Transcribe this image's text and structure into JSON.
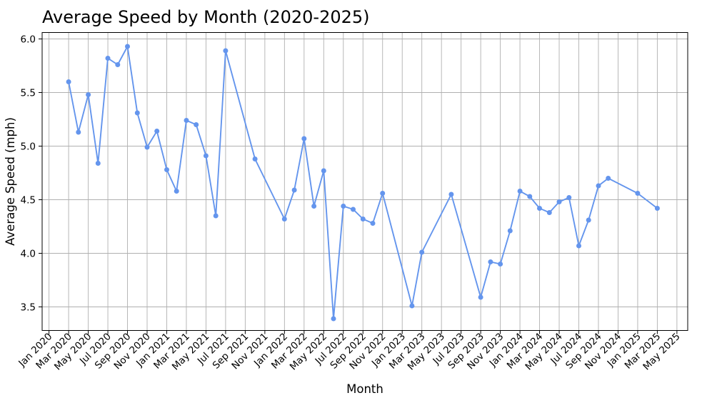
{
  "chart_data": {
    "type": "line",
    "title": "Average Speed by Month (2020-2025)",
    "xlabel": "Month",
    "ylabel": "Average Speed (mph)",
    "line_color": "#6495ED",
    "marker": "o",
    "grid": true,
    "grid_color": "#b0b0b0",
    "spine_color": "#000000",
    "background_color": "#ffffff",
    "legend": "none",
    "ylim": [
      3.28,
      6.06
    ],
    "xlim_months_from_jan2020": [
      -0.7,
      65.1
    ],
    "yticks": [
      6.0,
      5.5,
      5.0,
      4.5,
      4.0,
      3.5
    ],
    "xtick_labels": [
      "Jan 2020",
      "Mar 2020",
      "May 2020",
      "Jul 2020",
      "Sep 2020",
      "Nov 2020",
      "Jan 2021",
      "Mar 2021",
      "May 2021",
      "Jul 2021",
      "Sep 2021",
      "Nov 2021",
      "Jan 2022",
      "Mar 2022",
      "May 2022",
      "Jul 2022",
      "Sep 2022",
      "Nov 2022",
      "Jan 2023",
      "Mar 2023",
      "May 2023",
      "Jul 2023",
      "Sep 2023",
      "Nov 2023",
      "Jan 2024",
      "Mar 2024",
      "May 2024",
      "Jul 2024",
      "Sep 2024",
      "Nov 2024",
      "Jan 2025",
      "Mar 2025",
      "May 2025"
    ],
    "points": [
      {
        "month": "Mar 2020",
        "index": 2,
        "value": 5.6
      },
      {
        "month": "Apr 2020",
        "index": 3,
        "value": 5.13
      },
      {
        "month": "May 2020",
        "index": 4,
        "value": 5.48
      },
      {
        "month": "Jun 2020",
        "index": 5,
        "value": 4.84
      },
      {
        "month": "Jul 2020",
        "index": 6,
        "value": 5.82
      },
      {
        "month": "Aug 2020",
        "index": 7,
        "value": 5.76
      },
      {
        "month": "Sep 2020",
        "index": 8,
        "value": 5.93
      },
      {
        "month": "Oct 2020",
        "index": 9,
        "value": 5.31
      },
      {
        "month": "Nov 2020",
        "index": 10,
        "value": 4.99
      },
      {
        "month": "Dec 2020",
        "index": 11,
        "value": 5.14
      },
      {
        "month": "Jan 2021",
        "index": 12,
        "value": 4.78
      },
      {
        "month": "Feb 2021",
        "index": 13,
        "value": 4.58
      },
      {
        "month": "Mar 2021",
        "index": 14,
        "value": 5.24
      },
      {
        "month": "Apr 2021",
        "index": 15,
        "value": 5.2
      },
      {
        "month": "May 2021",
        "index": 16,
        "value": 4.91
      },
      {
        "month": "Jun 2021",
        "index": 17,
        "value": 4.35
      },
      {
        "month": "Jul 2021",
        "index": 18,
        "value": 5.89
      },
      {
        "month": "Oct 2021",
        "index": 21,
        "value": 4.88
      },
      {
        "month": "Jan 2022",
        "index": 24,
        "value": 4.32
      },
      {
        "month": "Feb 2022",
        "index": 25,
        "value": 4.59
      },
      {
        "month": "Mar 2022",
        "index": 26,
        "value": 5.07
      },
      {
        "month": "Apr 2022",
        "index": 27,
        "value": 4.44
      },
      {
        "month": "May 2022",
        "index": 28,
        "value": 4.77
      },
      {
        "month": "Jun 2022",
        "index": 29,
        "value": 3.39
      },
      {
        "month": "Jul 2022",
        "index": 30,
        "value": 4.44
      },
      {
        "month": "Aug 2022",
        "index": 31,
        "value": 4.41
      },
      {
        "month": "Sep 2022",
        "index": 32,
        "value": 4.32
      },
      {
        "month": "Oct 2022",
        "index": 33,
        "value": 4.28
      },
      {
        "month": "Nov 2022",
        "index": 34,
        "value": 4.56
      },
      {
        "month": "Feb 2023",
        "index": 37,
        "value": 3.51
      },
      {
        "month": "Mar 2023",
        "index": 38,
        "value": 4.01
      },
      {
        "month": "Jun 2023",
        "index": 41,
        "value": 4.55
      },
      {
        "month": "Sep 2023",
        "index": 44,
        "value": 3.59
      },
      {
        "month": "Oct 2023",
        "index": 45,
        "value": 3.92
      },
      {
        "month": "Nov 2023",
        "index": 46,
        "value": 3.9
      },
      {
        "month": "Dec 2023",
        "index": 47,
        "value": 4.21
      },
      {
        "month": "Jan 2024",
        "index": 48,
        "value": 4.58
      },
      {
        "month": "Feb 2024",
        "index": 49,
        "value": 4.53
      },
      {
        "month": "Mar 2024",
        "index": 50,
        "value": 4.42
      },
      {
        "month": "Apr 2024",
        "index": 51,
        "value": 4.38
      },
      {
        "month": "May 2024",
        "index": 52,
        "value": 4.48
      },
      {
        "month": "Jun 2024",
        "index": 53,
        "value": 4.52
      },
      {
        "month": "Jul 2024",
        "index": 54,
        "value": 4.07
      },
      {
        "month": "Aug 2024",
        "index": 55,
        "value": 4.31
      },
      {
        "month": "Sep 2024",
        "index": 56,
        "value": 4.63
      },
      {
        "month": "Oct 2024",
        "index": 57,
        "value": 4.7
      },
      {
        "month": "Jan 2025",
        "index": 60,
        "value": 4.56
      },
      {
        "month": "Mar 2025",
        "index": 62,
        "value": 4.42
      }
    ]
  }
}
